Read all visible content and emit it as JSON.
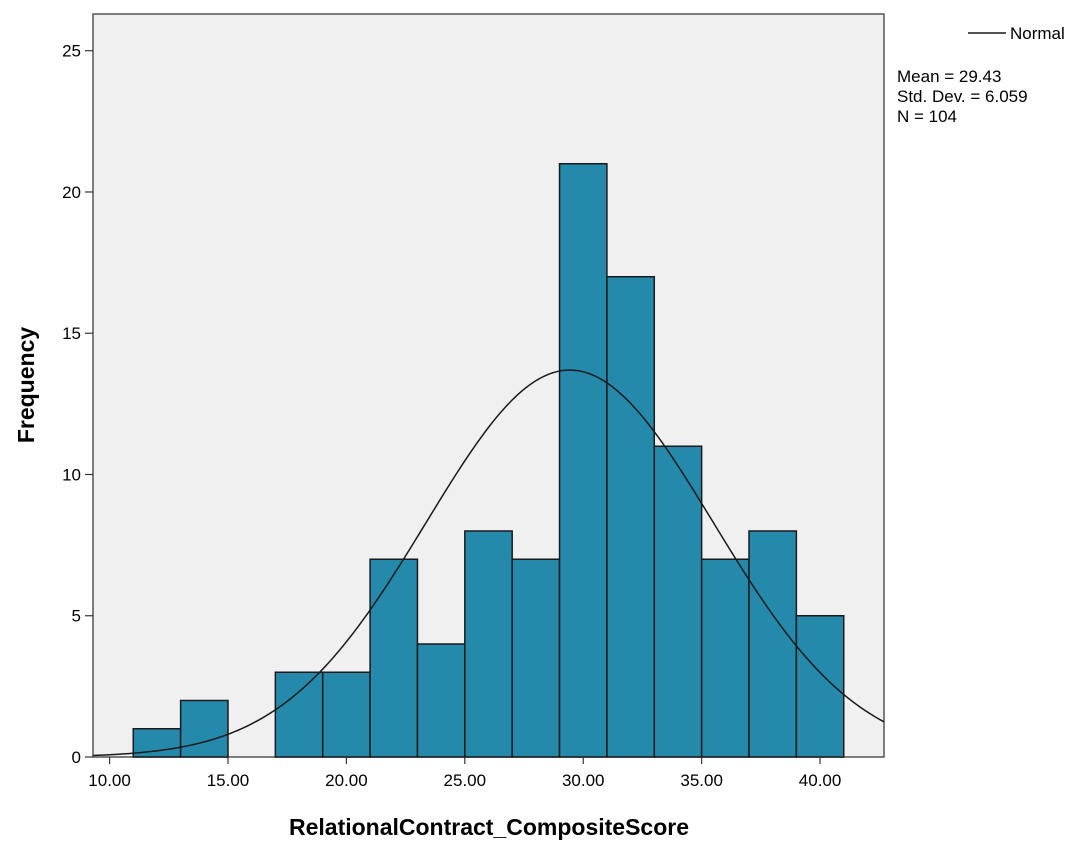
{
  "chart_data": {
    "type": "bar",
    "subtype": "histogram",
    "xlabel": "RelationalContract_CompositeScore",
    "ylabel": "Frequency",
    "xlim": [
      9.3,
      42.7
    ],
    "ylim": [
      0,
      26.3
    ],
    "x_ticks": [
      10,
      15,
      20,
      25,
      30,
      35,
      40
    ],
    "x_tick_labels": [
      "10.00",
      "15.00",
      "20.00",
      "25.00",
      "30.00",
      "35.00",
      "40.00"
    ],
    "y_ticks": [
      0,
      5,
      10,
      15,
      20,
      25
    ],
    "y_tick_labels": [
      "0",
      "5",
      "10",
      "15",
      "20",
      "25"
    ],
    "bins": [
      {
        "start": 11,
        "end": 13,
        "count": 1
      },
      {
        "start": 13,
        "end": 15,
        "count": 2
      },
      {
        "start": 15,
        "end": 17,
        "count": 0
      },
      {
        "start": 17,
        "end": 19,
        "count": 3
      },
      {
        "start": 19,
        "end": 21,
        "count": 3
      },
      {
        "start": 21,
        "end": 23,
        "count": 7
      },
      {
        "start": 23,
        "end": 25,
        "count": 4
      },
      {
        "start": 25,
        "end": 27,
        "count": 8
      },
      {
        "start": 27,
        "end": 29,
        "count": 7
      },
      {
        "start": 29,
        "end": 31,
        "count": 21
      },
      {
        "start": 31,
        "end": 33,
        "count": 17
      },
      {
        "start": 33,
        "end": 35,
        "count": 11
      },
      {
        "start": 35,
        "end": 37,
        "count": 7
      },
      {
        "start": 37,
        "end": 39,
        "count": 8
      },
      {
        "start": 39,
        "end": 41,
        "count": 5
      }
    ],
    "normal_curve": {
      "mean": 29.43,
      "sd": 6.059,
      "n": 104,
      "bin_width": 2
    },
    "legend": {
      "series_label": "Normal",
      "position": "top-right"
    },
    "stats": [
      "Mean = 29.43",
      "Std. Dev. = 6.059",
      "N = 104"
    ],
    "grid": false,
    "colors": {
      "bar_fill": "#2589AC",
      "bar_stroke": "#1a1a1a",
      "plot_bg": "#F0F0F0",
      "curve": "#1a1a1a"
    }
  }
}
